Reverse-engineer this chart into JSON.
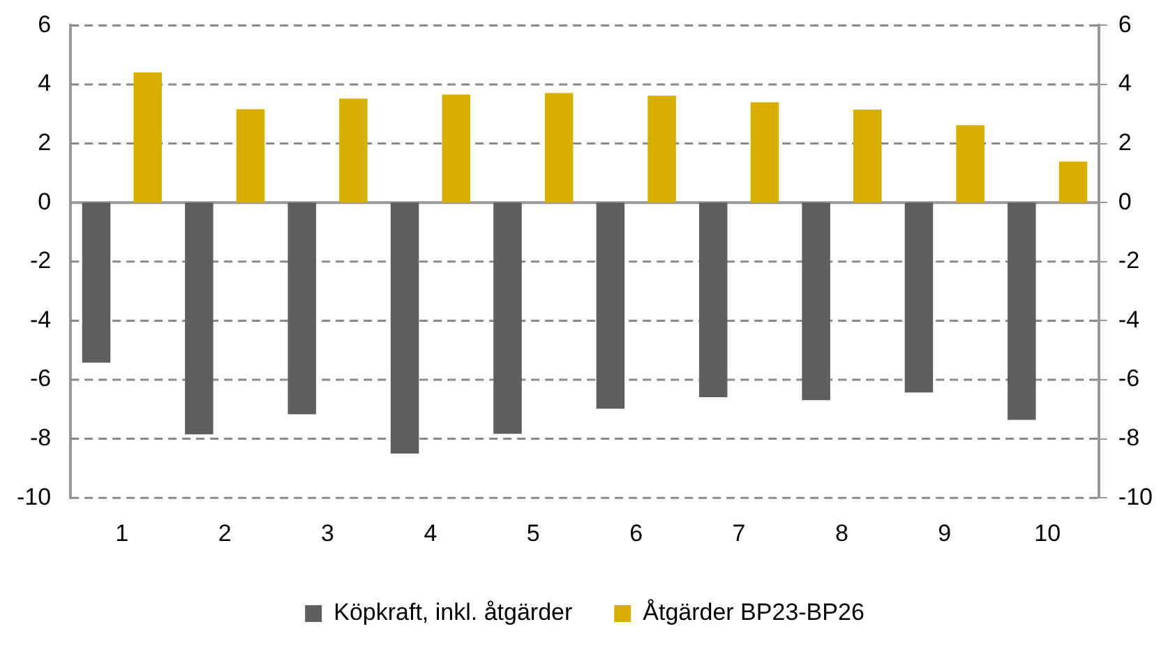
{
  "chart_data": {
    "type": "bar",
    "categories": [
      "1",
      "2",
      "3",
      "4",
      "5",
      "6",
      "7",
      "8",
      "9",
      "10"
    ],
    "series": [
      {
        "name": "Köpkraft, inkl. åtgärder",
        "color": "#5f5f5f",
        "values": [
          -5.42,
          -7.85,
          -7.17,
          -8.5,
          -7.83,
          -6.98,
          -6.59,
          -6.69,
          -6.43,
          -7.36
        ]
      },
      {
        "name": "Åtgärder BP23-BP26",
        "color": "#d6af00",
        "values": [
          4.41,
          3.16,
          3.52,
          3.66,
          3.71,
          3.62,
          3.4,
          3.15,
          2.62,
          1.39
        ]
      }
    ],
    "ylim": [
      -10,
      6
    ],
    "yticks": [
      -10,
      -8,
      -6,
      -4,
      -2,
      0,
      2,
      4,
      6
    ],
    "y2lim": [
      -10,
      6
    ],
    "y2ticks": [
      -10,
      -8,
      -6,
      -4,
      -2,
      0,
      2,
      4,
      6
    ],
    "grid": "y",
    "legend": "bottom"
  }
}
